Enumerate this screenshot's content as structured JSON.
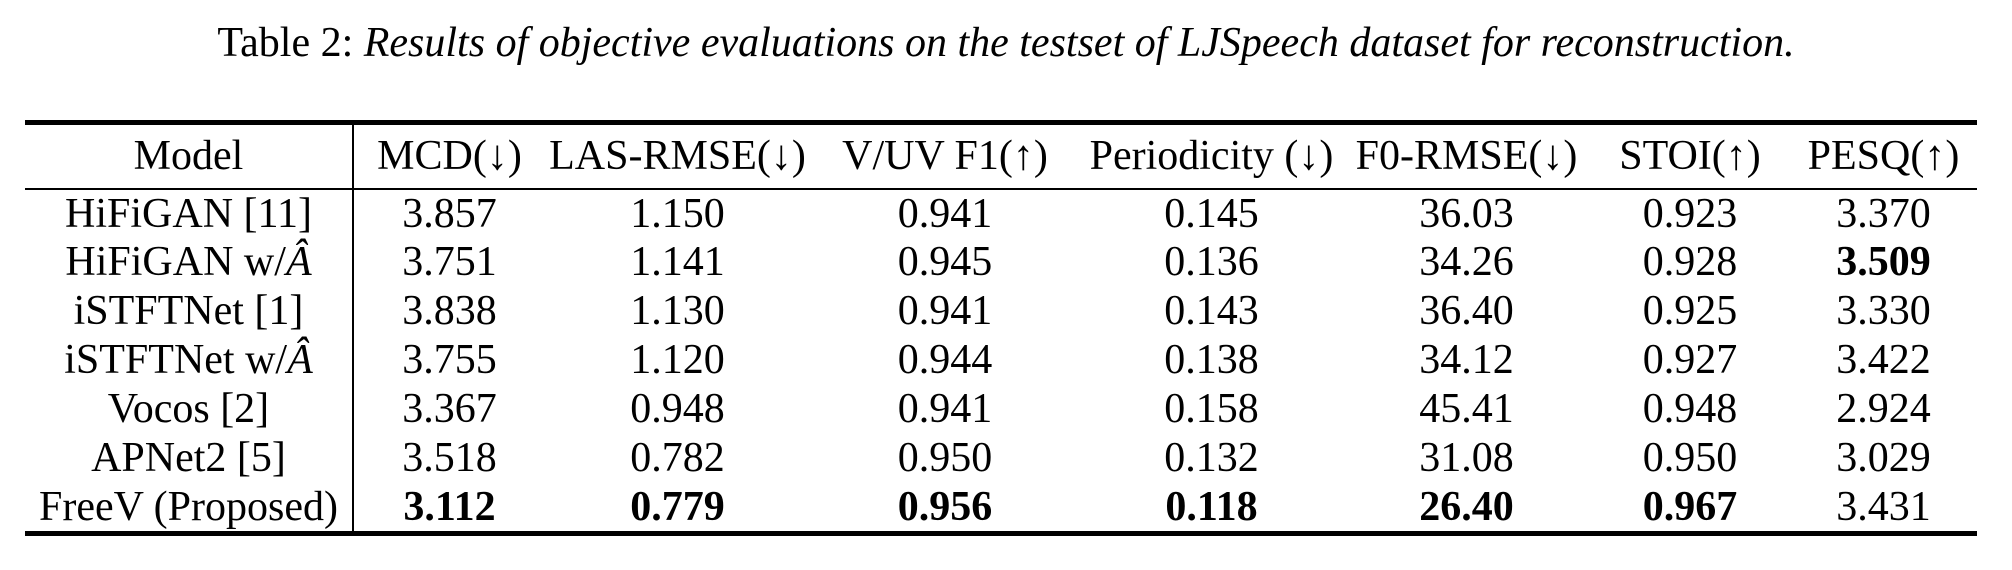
{
  "caption": {
    "label": "Table 2:",
    "text": "Results of objective evaluations on the testset of LJSpeech dataset for reconstruction."
  },
  "table": {
    "columns": [
      "Model",
      "MCD(↓)",
      "LAS-RMSE(↓)",
      "V/UV F1(↑)",
      "Periodicity (↓)",
      "F0-RMSE(↓)",
      "STOI(↑)",
      "PESQ(↑)"
    ],
    "rows": [
      {
        "model": "HiFiGAN [11]",
        "model_italic": "",
        "values": [
          "3.857",
          "1.150",
          "0.941",
          "0.145",
          "36.03",
          "0.923",
          "3.370"
        ],
        "bold_cols": []
      },
      {
        "model": "HiFiGAN w/",
        "model_italic": "Â",
        "values": [
          "3.751",
          "1.141",
          "0.945",
          "0.136",
          "34.26",
          "0.928",
          "3.509"
        ],
        "bold_cols": [
          6
        ]
      },
      {
        "model": "iSTFTNet [1]",
        "model_italic": "",
        "values": [
          "3.838",
          "1.130",
          "0.941",
          "0.143",
          "36.40",
          "0.925",
          "3.330"
        ],
        "bold_cols": []
      },
      {
        "model": "iSTFTNet w/",
        "model_italic": "Â",
        "values": [
          "3.755",
          "1.120",
          "0.944",
          "0.138",
          "34.12",
          "0.927",
          "3.422"
        ],
        "bold_cols": []
      },
      {
        "model": "Vocos [2]",
        "model_italic": "",
        "values": [
          "3.367",
          "0.948",
          "0.941",
          "0.158",
          "45.41",
          "0.948",
          "2.924"
        ],
        "bold_cols": []
      },
      {
        "model": "APNet2 [5]",
        "model_italic": "",
        "values": [
          "3.518",
          "0.782",
          "0.950",
          "0.132",
          "31.08",
          "0.950",
          "3.029"
        ],
        "bold_cols": []
      },
      {
        "model": "FreeV (Proposed)",
        "model_italic": "",
        "values": [
          "3.112",
          "0.779",
          "0.956",
          "0.118",
          "26.40",
          "0.967",
          "3.431"
        ],
        "bold_cols": [
          0,
          1,
          2,
          3,
          4,
          5
        ]
      }
    ]
  },
  "colors": {
    "text": "#000000",
    "background": "#ffffff",
    "rule": "#000000"
  }
}
